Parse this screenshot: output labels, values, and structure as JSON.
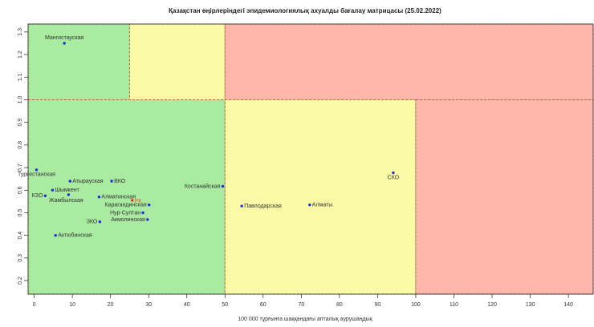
{
  "chart_data": {
    "type": "scatter",
    "title": "Қазақстан өңірлеріндегі эпидемиологиялық ахуалды бағалау матрицасы  (25.02.2022)",
    "x_label": "100 000 тұрғынға шаққандағы апталық аурушаңдық",
    "xlim": [
      -1.6,
      146.5
    ],
    "ylim": [
      0.14,
      1.335
    ],
    "xticks": [
      0,
      10,
      20,
      30,
      40,
      50,
      60,
      70,
      80,
      90,
      100,
      110,
      120,
      130,
      140
    ],
    "yticks": [
      0.2,
      0.3,
      0.4,
      0.5,
      0.6,
      0.7,
      0.8,
      0.9,
      {
        "value": 1,
        "label": "1.0"
      },
      1.1,
      1.2,
      1.3
    ],
    "zones": [
      {
        "x_to": 25,
        "y_from": 1,
        "color": "#a9eba0"
      },
      {
        "x_from": 25,
        "x_to": 50,
        "y_from": 1,
        "color": "#fbfba7"
      },
      {
        "x_from": 50,
        "y_from": 1,
        "color": "#ffb7ab"
      },
      {
        "x_to": 50,
        "y_to": 1,
        "color": "#a9eba0"
      },
      {
        "x_from": 50,
        "x_to": 100,
        "y_to": 1,
        "color": "#fbfba7"
      },
      {
        "x_from": 100,
        "y_to": 1,
        "color": "#ffb7ab"
      }
    ],
    "points": [
      {
        "label": "Мангистауская",
        "x": 7.9,
        "y": 1.25,
        "color": "#1a2fd8",
        "label_color": "#333333"
      },
      {
        "label": "Туркестанская",
        "x": 0.6,
        "y": 0.69,
        "color": "#1a2fd8",
        "label_color": "#333333"
      },
      {
        "label": "Атырауская",
        "x": 9.4,
        "y": 0.64,
        "color": "#1a2fd8",
        "label_color": "#333333"
      },
      {
        "label": "ВКО",
        "x": 20.3,
        "y": 0.64,
        "color": "#1a2fd8",
        "label_color": "#333333"
      },
      {
        "label": "Шымкент",
        "x": 4.8,
        "y": 0.6,
        "color": "#1a2fd8",
        "label_color": "#333333"
      },
      {
        "label": "КЗО",
        "x": 2.9,
        "y": 0.575,
        "color": "#1a2fd8",
        "label_color": "#333333"
      },
      {
        "label": "Жамбылская",
        "x": 9.0,
        "y": 0.58,
        "color": "#1a2fd8",
        "label_color": "#333333"
      },
      {
        "label": "Алматинская",
        "x": 17.0,
        "y": 0.57,
        "color": "#1a2fd8",
        "label_color": "#333333"
      },
      {
        "label": "РК",
        "x": 25.7,
        "y": 0.555,
        "color": "#e0302a",
        "label_color": "#e05a2a"
      },
      {
        "label": "Карагандинская",
        "x": 30.1,
        "y": 0.535,
        "color": "#1a2fd8",
        "label_color": "#333333"
      },
      {
        "label": "Нур-Султан",
        "x": 28.5,
        "y": 0.5,
        "color": "#1a2fd8",
        "label_color": "#333333"
      },
      {
        "label": "Акмолинская",
        "x": 29.7,
        "y": 0.47,
        "color": "#1a2fd8",
        "label_color": "#333333"
      },
      {
        "label": "ЗКО",
        "x": 17.2,
        "y": 0.46,
        "color": "#1a2fd8",
        "label_color": "#333333"
      },
      {
        "label": "Актюбинская",
        "x": 5.6,
        "y": 0.4,
        "color": "#1a2fd8",
        "label_color": "#333333"
      },
      {
        "label": "Костанайская",
        "x": 49.4,
        "y": 0.617,
        "color": "#1a2fd8",
        "label_color": "#333333"
      },
      {
        "label": "Павлодарская",
        "x": 54.4,
        "y": 0.53,
        "color": "#1a2fd8",
        "label_color": "#333333"
      },
      {
        "label": "Алматы",
        "x": 72.2,
        "y": 0.535,
        "color": "#1a2fd8",
        "label_color": "#333333"
      },
      {
        "label": "СКО",
        "x": 94.1,
        "y": 0.677,
        "color": "#1a2fd8",
        "label_color": "#333333"
      }
    ]
  }
}
